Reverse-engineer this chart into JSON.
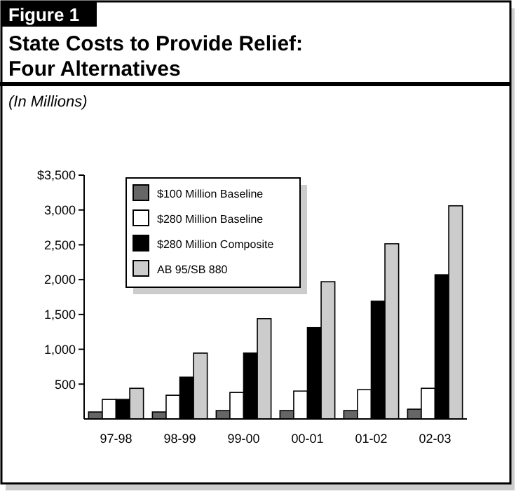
{
  "chart_data": {
    "type": "bar",
    "title": "State Costs to Provide Relief: Four Alternatives",
    "subtitle": "(In Millions)",
    "annotations": [
      "Figure 1"
    ],
    "categories": [
      "97-98",
      "98-99",
      "99-00",
      "00-01",
      "01-02",
      "02-03"
    ],
    "series": [
      {
        "name": "$100 Million Baseline",
        "color": "#666666",
        "values": [
          100,
          100,
          120,
          120,
          120,
          140
        ]
      },
      {
        "name": "$280 Million Baseline",
        "color": "#ffffff",
        "values": [
          280,
          340,
          380,
          400,
          420,
          440
        ]
      },
      {
        "name": "$280 Million Composite",
        "color": "#000000",
        "values": [
          280,
          600,
          945,
          1310,
          1690,
          2070
        ]
      },
      {
        "name": "AB 95/SB 880",
        "color": "#cccccc",
        "values": [
          440,
          945,
          1440,
          1970,
          2515,
          3060
        ]
      }
    ],
    "ylim": [
      0,
      3500
    ],
    "yticks": [
      {
        "value": 500,
        "label": "500"
      },
      {
        "value": 1000,
        "label": "1,000"
      },
      {
        "value": 1500,
        "label": "1,500"
      },
      {
        "value": 2000,
        "label": "2,000"
      },
      {
        "value": 2500,
        "label": "2,500"
      },
      {
        "value": 3000,
        "label": "3,000"
      },
      {
        "value": 3500,
        "label": "$3,500"
      }
    ],
    "legend": "top left",
    "grid": false
  }
}
